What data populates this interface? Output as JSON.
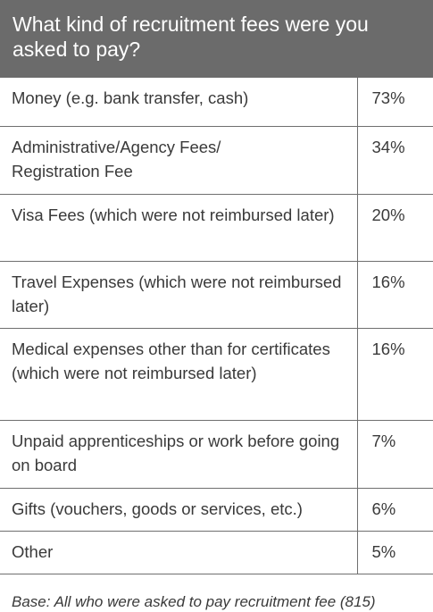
{
  "title": "What kind of recruitment fees were you asked to pay?",
  "rows": [
    {
      "label": "Money (e.g. bank transfer, cash)",
      "value": "73%"
    },
    {
      "label": "Administrative/Agency Fees/ Registration Fee",
      "value": "34%"
    },
    {
      "label": "Visa Fees (which were not reimbursed later)",
      "value": "20%"
    },
    {
      "label": "Travel Expenses (which were not reimbursed later)",
      "value": "16%"
    },
    {
      "label": "Medical expenses other than for certificates (which were not reimbursed later)",
      "value": "16%"
    },
    {
      "label": "Unpaid apprenticeships or work before going on board",
      "value": "7%"
    },
    {
      "label": "Gifts (vouchers, goods or services, etc.)",
      "value": "6%"
    },
    {
      "label": "Other",
      "value": "5%"
    }
  ],
  "footnote": "Base: All who were asked to pay recruitment fee (815)",
  "colors": {
    "header_bg": "#6b6b6b",
    "header_text": "#ffffff",
    "body_text": "#3a3a3a",
    "rule": "#6f6f6f"
  }
}
